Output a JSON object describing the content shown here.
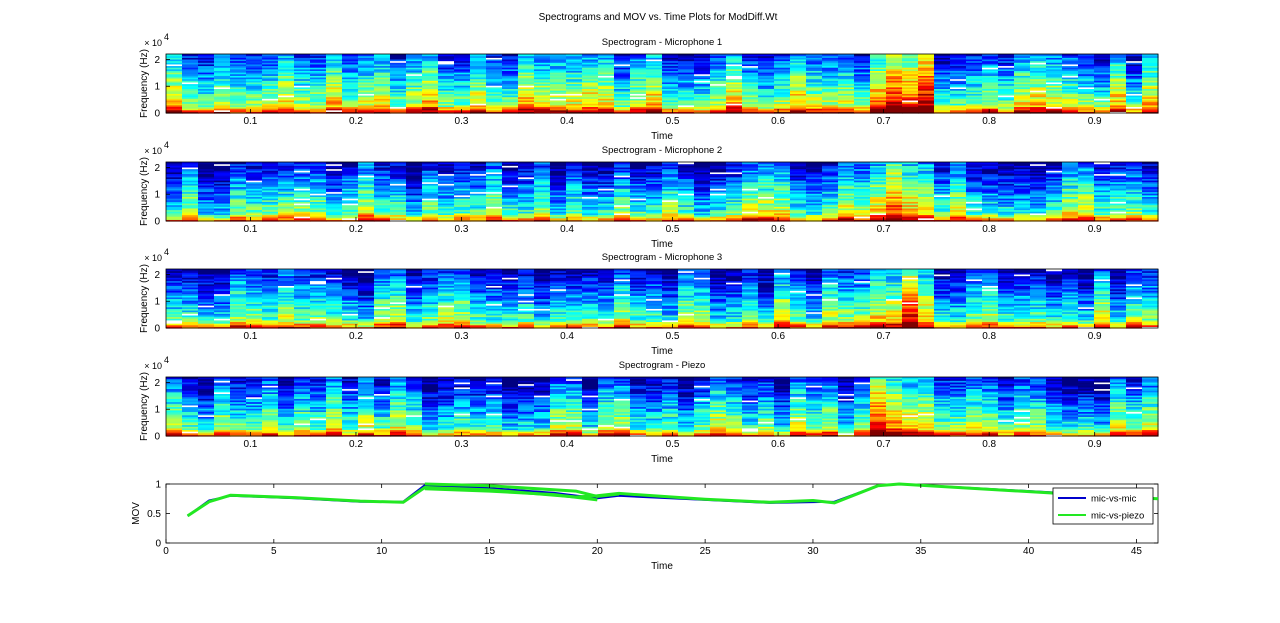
{
  "figure_title": "Spectrograms and MOV vs. Time Plots for ModDiff.Wt",
  "chart_data": [
    {
      "type": "heatmap",
      "title": "Spectrogram - Microphone 1",
      "xlabel": "Time",
      "ylabel": "Frequency (Hz)",
      "y_exponent": "x 10^4",
      "y_exponent_base": "× 10",
      "y_exponent_power": "4",
      "xlim": [
        0.02,
        0.96
      ],
      "ylim": [
        0,
        22050
      ],
      "xticks": [
        "0.1",
        "0.2",
        "0.3",
        "0.4",
        "0.5",
        "0.6",
        "0.7",
        "0.8",
        "0.9"
      ],
      "yticks": [
        "0",
        "1",
        "2"
      ],
      "colormap": "jet",
      "hot_region_time": [
        0.68,
        0.75
      ]
    },
    {
      "type": "heatmap",
      "title": "Spectrogram - Microphone 2",
      "xlabel": "Time",
      "ylabel": "Frequency (Hz)",
      "y_exponent": "x 10^4",
      "y_exponent_base": "× 10",
      "y_exponent_power": "4",
      "xlim": [
        0.02,
        0.96
      ],
      "ylim": [
        0,
        22050
      ],
      "xticks": [
        "0.1",
        "0.2",
        "0.3",
        "0.4",
        "0.5",
        "0.6",
        "0.7",
        "0.8",
        "0.9"
      ],
      "yticks": [
        "0",
        "1",
        "2"
      ],
      "colormap": "jet",
      "hot_region_time": [
        0.68,
        0.75
      ]
    },
    {
      "type": "heatmap",
      "title": "Spectrogram - Microphone 3",
      "xlabel": "Time",
      "ylabel": "Frequency (Hz)",
      "y_exponent": "x 10^4",
      "y_exponent_base": "× 10",
      "y_exponent_power": "4",
      "xlim": [
        0.02,
        0.96
      ],
      "ylim": [
        0,
        22050
      ],
      "xticks": [
        "0.1",
        "0.2",
        "0.3",
        "0.4",
        "0.5",
        "0.6",
        "0.7",
        "0.8",
        "0.9"
      ],
      "yticks": [
        "0",
        "1",
        "2"
      ],
      "colormap": "jet",
      "hot_region_time": [
        0.68,
        0.75
      ]
    },
    {
      "type": "heatmap",
      "title": "Spectrogram - Piezo",
      "xlabel": "Time",
      "ylabel": "Frequency (Hz)",
      "y_exponent": "x 10^4",
      "y_exponent_base": "× 10",
      "y_exponent_power": "4",
      "xlim": [
        0.02,
        0.96
      ],
      "ylim": [
        0,
        22050
      ],
      "xticks": [
        "0.1",
        "0.2",
        "0.3",
        "0.4",
        "0.5",
        "0.6",
        "0.7",
        "0.8",
        "0.9"
      ],
      "yticks": [
        "0",
        "1",
        "2"
      ],
      "colormap": "jet",
      "hot_region_time": [
        0.68,
        0.75
      ]
    },
    {
      "type": "line",
      "title": "",
      "xlabel": "Time",
      "ylabel": "MOV",
      "xlim": [
        0,
        46
      ],
      "ylim": [
        0,
        1
      ],
      "xticks": [
        "0",
        "5",
        "10",
        "15",
        "20",
        "25",
        "30",
        "35",
        "40",
        "45"
      ],
      "yticks": [
        "0",
        "0.5",
        "1"
      ],
      "legend_position": "top-right",
      "series": [
        {
          "name": "mic-vs-mic",
          "color": "#0000cc",
          "x": [
            1,
            2,
            3,
            6,
            9,
            11,
            12,
            15,
            18,
            20,
            21,
            25,
            28,
            31,
            33,
            34,
            41,
            46
          ],
          "y": [
            0.46,
            0.72,
            0.8,
            0.76,
            0.7,
            0.7,
            0.98,
            0.93,
            0.85,
            0.76,
            0.8,
            0.73,
            0.68,
            0.7,
            0.97,
            1.0,
            0.86,
            0.75
          ]
        },
        {
          "name": "mic-vs-piezo",
          "color": "#22e822",
          "x": [
            1,
            2,
            3,
            6,
            9,
            11,
            12,
            15,
            19,
            20,
            21,
            25,
            28,
            30,
            31,
            33,
            34,
            41,
            46
          ],
          "y": [
            0.46,
            0.7,
            0.81,
            0.77,
            0.71,
            0.69,
            0.94,
            0.9,
            0.78,
            0.8,
            0.84,
            0.74,
            0.69,
            0.72,
            0.68,
            0.97,
            1.0,
            0.85,
            0.75
          ]
        },
        {
          "name": "",
          "color": "#22e822",
          "x": [
            12,
            15,
            19,
            20,
            21
          ],
          "y": [
            1.0,
            0.97,
            0.88,
            0.79,
            0.83
          ]
        },
        {
          "name": "",
          "color": "#22e822",
          "x": [
            12,
            15,
            18,
            20
          ],
          "y": [
            0.92,
            0.88,
            0.82,
            0.73
          ]
        }
      ]
    }
  ]
}
